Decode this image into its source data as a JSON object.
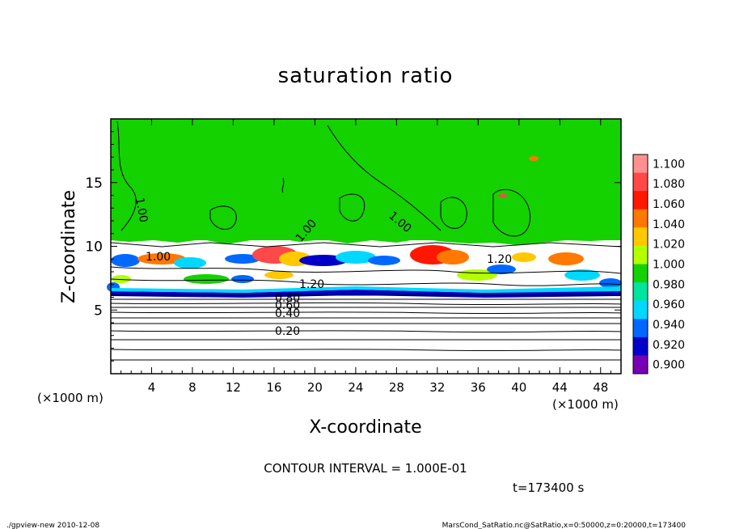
{
  "chart_data": {
    "type": "heatmap",
    "title": "saturation ratio",
    "xlabel": "X-coordinate",
    "ylabel": "Z-coordinate",
    "x_unit": "(×1000 m)",
    "z_unit": "(×1000 m)",
    "xlim": [
      0,
      50
    ],
    "ylim": [
      0,
      20
    ],
    "x_ticks": [
      "4",
      "8",
      "12",
      "16",
      "20",
      "24",
      "28",
      "32",
      "36",
      "40",
      "44",
      "48"
    ],
    "y_ticks": [
      "5",
      "10",
      "15"
    ],
    "colorbar": {
      "levels": [
        "1.100",
        "1.080",
        "1.060",
        "1.040",
        "1.020",
        "1.000",
        "0.980",
        "0.960",
        "0.940",
        "0.920",
        "0.900"
      ],
      "colors": [
        "#ff9090",
        "#ff4848",
        "#ff1800",
        "#ff7800",
        "#ffc800",
        "#b4ff00",
        "#14d200",
        "#00e4a0",
        "#00d8ff",
        "#0068ff",
        "#0000c8",
        "#7800b4"
      ]
    },
    "contour_labels": [
      "1.00",
      "1.00",
      "1.00",
      "1.00",
      "1.20",
      "1.20",
      "0.80",
      "0.60",
      "0.40",
      "0.20"
    ],
    "contour_interval_text": "CONTOUR INTERVAL = 1.000E-01",
    "time_label": "t=173400 s"
  },
  "footer": {
    "left": "./gpview-new  2010-12-08",
    "right": "MarsCond_SatRatio.nc@SatRatio,x=0:50000,z=0:20000,t=173400"
  }
}
